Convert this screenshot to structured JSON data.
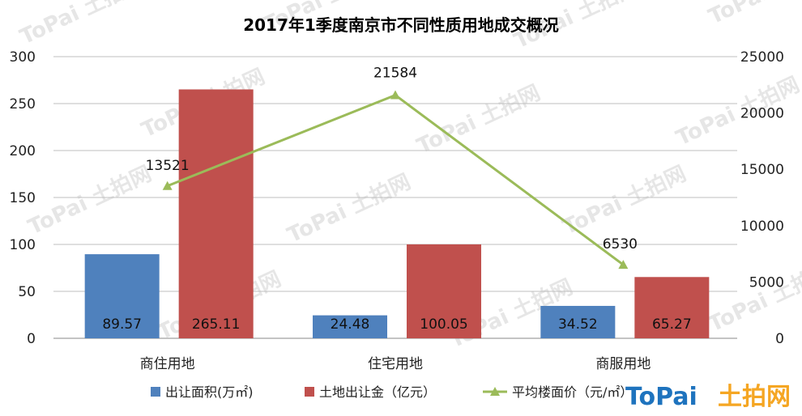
{
  "chart_data": {
    "type": "bar",
    "title": "2017年1季度南京市不同性质用地成交概况",
    "categories": [
      "商住用地",
      "住宅用地",
      "商服用地"
    ],
    "series": [
      {
        "name": "出让面积(万㎡)",
        "type": "bar",
        "axis": "left",
        "color": "#4f81bd",
        "values": [
          89.57,
          24.48,
          34.52
        ]
      },
      {
        "name": "土地出让金（亿元）",
        "type": "bar",
        "axis": "left",
        "color": "#c0504d",
        "values": [
          265.11,
          100.05,
          65.27
        ]
      },
      {
        "name": "平均楼面价（元/㎡）",
        "type": "line",
        "axis": "right",
        "color": "#9bbb59",
        "values": [
          13521,
          21584,
          6530
        ]
      }
    ],
    "y_left": {
      "min": 0,
      "max": 300,
      "ticks": [
        "0",
        "50",
        "100",
        "150",
        "200",
        "250",
        "300"
      ]
    },
    "y_right": {
      "min": 0,
      "max": 25000,
      "ticks": [
        "0",
        "5000",
        "10000",
        "15000",
        "20000",
        "25000"
      ]
    },
    "grid": true,
    "legend_position": "bottom"
  },
  "watermark": {
    "text": "土拍网",
    "logo_text": "ToPai",
    "logo_color": "#1e73be",
    "accent_color": "#f5a623"
  }
}
